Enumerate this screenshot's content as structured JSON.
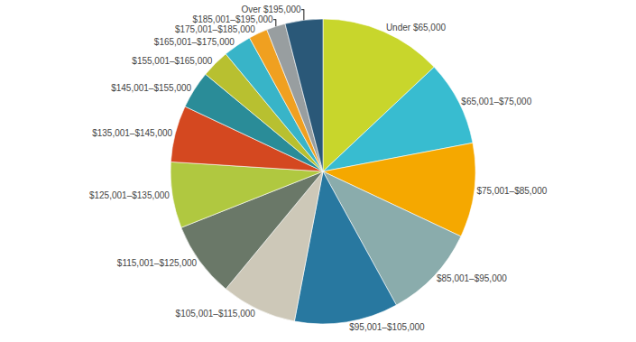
{
  "chart_data": {
    "type": "pie",
    "categories": [
      "Under $65,000",
      "$65,001–$75,000",
      "$75,001–$85,000",
      "$85,001–$95,000",
      "$95,001–$105,000",
      "$105,001–$115,000",
      "$115,001–$125,000",
      "$125,001–$135,000",
      "$135,001–$145,000",
      "$145,001–$155,000",
      "$155,001–$165,000",
      "$165,001–$175,000",
      "$175,001–$185,000",
      "$185,001–$195,000",
      "Over $195,000"
    ],
    "values": [
      13,
      9,
      10,
      10,
      11,
      8,
      8,
      7,
      6,
      4,
      3,
      3,
      2,
      2,
      4
    ],
    "colors": [
      "#c8d62c",
      "#38bcd0",
      "#f5a800",
      "#8aacac",
      "#2878a0",
      "#cdc8b8",
      "#6a7868",
      "#b0c840",
      "#d44820",
      "#2a8c98",
      "#b8c030",
      "#38b4c8",
      "#f0a020",
      "#989ea0",
      "#2a5878"
    ]
  }
}
